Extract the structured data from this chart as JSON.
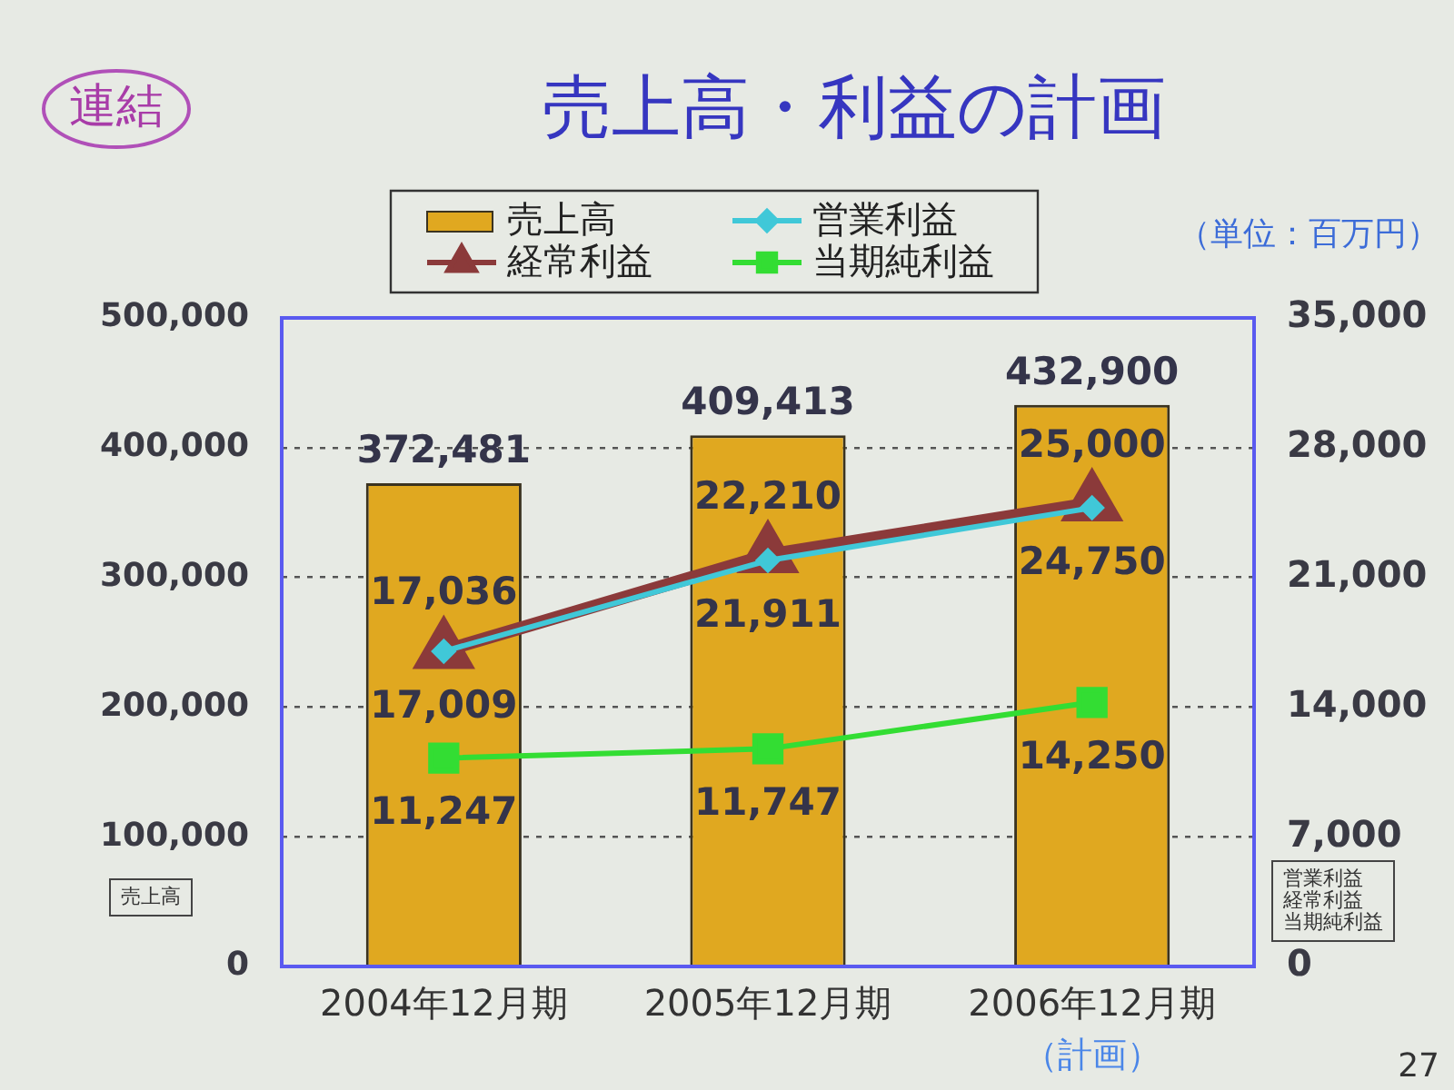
{
  "chart_data": {
    "type": "bar",
    "title": "売上高・利益の計画",
    "ylabel": "売上高",
    "y2label": "営業利益経常利益当期純利益",
    "annotations": [
      "連結",
      "（単位：百万円）",
      "（計画）",
      "27"
    ],
    "categories": [
      "2004年12月期",
      "2005年12月期",
      "2006年12月期"
    ],
    "series": [
      {
        "name": "売上高",
        "color": "#e0a820",
        "values": [
          372481,
          409413,
          432900
        ],
        "value_labels": [
          "372,481",
          "409,413",
          "432,900"
        ]
      },
      {
        "name": "営業利益",
        "type": "line",
        "axis": "y2",
        "color": "#40c8d8",
        "marker": "diamond",
        "values": [
          17009,
          21911,
          24750
        ],
        "value_labels": [
          "17,009",
          "21,911",
          "24,750"
        ]
      },
      {
        "name": "経常利益",
        "type": "line",
        "axis": "y2",
        "color": "#8b3a3a",
        "marker": "triangle",
        "values": [
          17036,
          22210,
          25000
        ],
        "value_labels": [
          "17,036",
          "22,210",
          "25,000"
        ]
      },
      {
        "name": "当期純利益",
        "type": "line",
        "axis": "y2",
        "color": "#33dd33",
        "marker": "square",
        "values": [
          11247,
          11747,
          14250
        ],
        "value_labels": [
          "11,247",
          "11,747",
          "14,250"
        ]
      }
    ],
    "ylim": [
      0,
      500000
    ],
    "yticks": [
      0,
      {
        "value": 100000,
        "label": "100,000"
      },
      {
        "value": 200000,
        "label": "200,000"
      },
      {
        "value": 300000,
        "label": "300,000"
      },
      {
        "value": 400000,
        "label": "400,000"
      },
      {
        "value": 500000,
        "label": "500,000"
      }
    ],
    "y2lim": [
      0,
      35000
    ],
    "y2ticks": [
      0,
      {
        "value": 7000,
        "label": "7,000"
      },
      {
        "value": 14000,
        "label": "14,000"
      },
      {
        "value": 21000,
        "label": "21,000"
      },
      {
        "value": 28000,
        "label": "28,000"
      },
      {
        "value": 35000,
        "label": "35,000"
      }
    ],
    "grid": "y",
    "legend": "top"
  }
}
